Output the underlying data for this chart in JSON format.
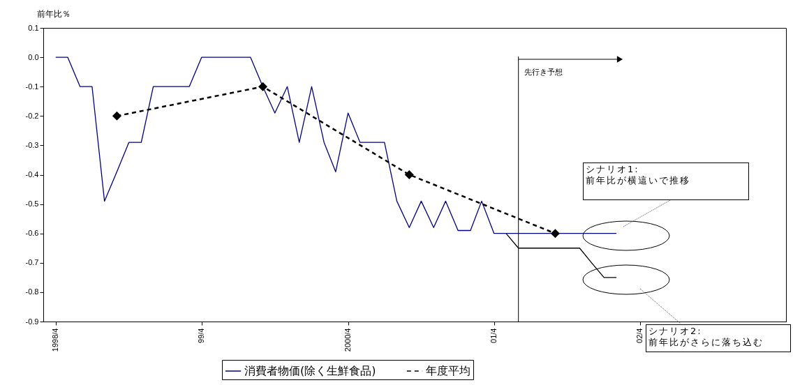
{
  "chart_data": {
    "type": "line",
    "ylabel": "前年比％",
    "xlim": [
      "1998-03",
      "2003-04"
    ],
    "xticks": [
      {
        "value": "1998-04",
        "label": "1998/4"
      },
      {
        "value": "1999-04",
        "label": "99/4"
      },
      {
        "value": "2000-04",
        "label": "2000/4"
      },
      {
        "value": "2001-04",
        "label": "01/4"
      },
      {
        "value": "2002-04",
        "label": "02/4"
      }
    ],
    "ylim": [
      -0.9,
      0.1
    ],
    "yticks": [
      -0.9,
      -0.8,
      -0.7,
      -0.6,
      -0.5,
      -0.4,
      -0.3,
      -0.2,
      -0.1,
      {
        "value": 0,
        "label": "0.0"
      },
      0.1
    ],
    "grid": false,
    "legend": "bottom",
    "series": [
      {
        "name": "消費者物価(除く生鮮食品)",
        "color": "#000080",
        "line_style": "solid",
        "marker": "none",
        "x": [
          "1998-04",
          "1998-05",
          "1998-06",
          "1998-07",
          "1998-08",
          "1998-09",
          "1998-10",
          "1998-11",
          "1998-12",
          "1999-01",
          "1999-02",
          "1999-03",
          "1999-04",
          "1999-05",
          "1999-06",
          "1999-07",
          "1999-08",
          "1999-09",
          "1999-10",
          "1999-11",
          "1999-12",
          "2000-01",
          "2000-02",
          "2000-03",
          "2000-04",
          "2000-05",
          "2000-06",
          "2000-07",
          "2000-08",
          "2000-09",
          "2000-10",
          "2000-11",
          "2000-12",
          "2001-01",
          "2001-02",
          "2001-03",
          "2001-04",
          "2001-05",
          "2001-06",
          "2001-07",
          "2001-08",
          "2001-09",
          "2001-10",
          "2001-11",
          "2001-12",
          "2002-01",
          "2002-02"
        ],
        "values": [
          0,
          0,
          -0.1,
          -0.1,
          -0.49,
          -0.39,
          -0.29,
          -0.29,
          -0.1,
          -0.1,
          -0.1,
          -0.1,
          0,
          0,
          0,
          0,
          0,
          -0.1,
          -0.19,
          -0.1,
          -0.29,
          -0.1,
          -0.29,
          -0.39,
          -0.19,
          -0.29,
          -0.29,
          -0.29,
          -0.49,
          -0.58,
          -0.49,
          -0.58,
          -0.49,
          -0.59,
          -0.59,
          -0.49,
          -0.6,
          -0.6,
          -0.6,
          -0.6,
          -0.6,
          -0.6,
          -0.6,
          -0.6,
          -0.6,
          -0.6,
          -0.6
        ]
      },
      {
        "name": "年度平均",
        "color": "#000000",
        "line_style": "dashed",
        "marker": "diamond",
        "x": [
          "1998-09",
          "1999-09",
          "2000-09",
          "2001-09"
        ],
        "values": [
          -0.2,
          -0.1,
          -0.4,
          -0.6
        ]
      },
      {
        "color": "#000000",
        "line_style": "solid",
        "marker": "none",
        "x": [
          "2001-05",
          "2001-06",
          "2001-07",
          "2001-08",
          "2001-09",
          "2001-10",
          "2001-11",
          "2001-12",
          "2002-01",
          "2002-02"
        ],
        "values": [
          -0.6,
          -0.65,
          -0.65,
          -0.65,
          -0.65,
          -0.65,
          -0.65,
          -0.7,
          -0.75,
          -0.75
        ]
      }
    ],
    "ref_lines": [
      {
        "axis": "x",
        "value": "2001-06",
        "label": "先行き予想"
      }
    ],
    "annotations": [
      "シナリオ1:\n前年比が横這いで推移",
      "シナリオ2:\n前年比がさらに落ち込む"
    ]
  }
}
